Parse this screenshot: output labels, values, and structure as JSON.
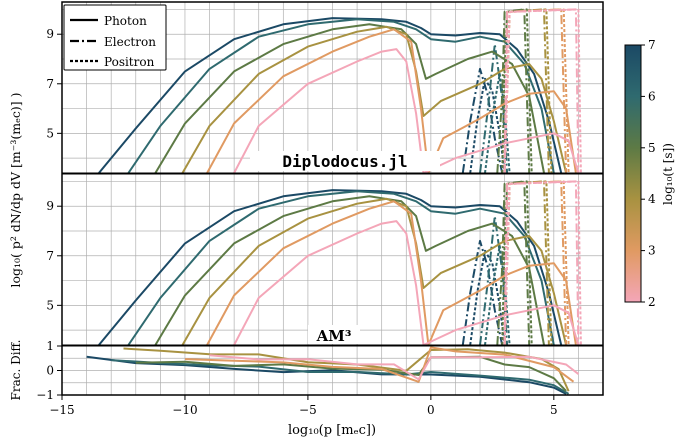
{
  "chart_data": {
    "type": "line",
    "xlabel": "log₁₀(p [mₑc])",
    "ylabel": "log₁₀( p² dN/dp dV  [m⁻³(mₑc)] )",
    "ylabel_ratio": "Frac. Diff.",
    "xlim": [
      -15,
      7
    ],
    "xticks": [
      "−15",
      "−10",
      "−5",
      "0",
      "5"
    ],
    "panels": [
      {
        "id": "top",
        "annotation": "Diplodocus.jl",
        "ylim": [
          3.4,
          10.3
        ],
        "yticks": [
          "5",
          "7",
          "9"
        ]
      },
      {
        "id": "middle",
        "annotation": "AM³",
        "ylim": [
          3.4,
          10.3
        ],
        "yticks": [
          "5",
          "7",
          "9"
        ]
      },
      {
        "id": "bottom",
        "annotation": "",
        "ylim": [
          -1,
          1
        ],
        "yticks": [
          "−1",
          "0",
          "1"
        ]
      }
    ],
    "legend": {
      "placement": "top-left",
      "entries": [
        "Photon",
        "Electron",
        "Positron"
      ]
    },
    "colorbar": {
      "label": "log₁₀(t [s])",
      "range": [
        2,
        7
      ],
      "ticks": [
        "2",
        "3",
        "4",
        "5",
        "6",
        "7"
      ]
    },
    "grid": true,
    "series": [
      {
        "logt": 7.0,
        "color": "#1b4965",
        "photon": [
          [
            -13.5,
            3.4
          ],
          [
            -12,
            5.2
          ],
          [
            -10,
            7.5
          ],
          [
            -8,
            8.8
          ],
          [
            -6,
            9.4
          ],
          [
            -4,
            9.65
          ],
          [
            -2,
            9.6
          ],
          [
            -1,
            9.5
          ],
          [
            -0.4,
            9.25
          ],
          [
            0,
            9.0
          ],
          [
            1,
            8.95
          ],
          [
            2,
            9.05
          ],
          [
            2.8,
            9.0
          ],
          [
            3.5,
            8.4
          ],
          [
            4.2,
            7.4
          ],
          [
            4.8,
            5.5
          ],
          [
            5.3,
            3.4
          ]
        ],
        "electron": [
          [
            1.3,
            3.4
          ],
          [
            1.6,
            5.5
          ],
          [
            2.0,
            7.6
          ],
          [
            2.3,
            6.6
          ],
          [
            2.6,
            4.8
          ],
          [
            2.9,
            3.4
          ]
        ],
        "positron": [
          [
            1.6,
            3.4
          ],
          [
            1.9,
            5.6
          ],
          [
            2.2,
            7.2
          ],
          [
            2.5,
            6.7
          ],
          [
            2.8,
            5.0
          ],
          [
            3.0,
            3.4
          ]
        ],
        "diff": [
          [
            -14,
            0.5
          ],
          [
            -12,
            0.35
          ],
          [
            -10,
            0.2
          ],
          [
            -8,
            0.05
          ],
          [
            -6,
            -0.02
          ],
          [
            -4,
            -0.05
          ],
          [
            -2,
            -0.1
          ],
          [
            0,
            -0.2
          ],
          [
            2,
            -0.25
          ],
          [
            4,
            -0.45
          ],
          [
            5,
            -0.7
          ],
          [
            5.5,
            -1.0
          ]
        ]
      },
      {
        "logt": 6.0,
        "color": "#2f6a6f",
        "photon": [
          [
            -12.3,
            3.4
          ],
          [
            -11,
            5.3
          ],
          [
            -9,
            7.6
          ],
          [
            -7,
            8.9
          ],
          [
            -5,
            9.4
          ],
          [
            -3,
            9.6
          ],
          [
            -1.5,
            9.5
          ],
          [
            -0.6,
            9.2
          ],
          [
            0,
            8.8
          ],
          [
            1,
            8.7
          ],
          [
            2,
            8.9
          ],
          [
            3,
            8.7
          ],
          [
            3.8,
            7.8
          ],
          [
            4.5,
            6.0
          ],
          [
            5.0,
            3.4
          ]
        ],
        "electron": [
          [
            2.0,
            3.4
          ],
          [
            2.3,
            5.8
          ],
          [
            2.6,
            8.6
          ],
          [
            2.9,
            6.4
          ],
          [
            3.1,
            3.4
          ]
        ],
        "positron": [
          [
            2.2,
            3.4
          ],
          [
            2.5,
            5.7
          ],
          [
            2.8,
            7.4
          ],
          [
            3.0,
            6.0
          ],
          [
            3.2,
            3.4
          ]
        ],
        "diff": [
          [
            -13,
            0.4
          ],
          [
            -11,
            0.3
          ],
          [
            -9,
            0.25
          ],
          [
            -7,
            0.1
          ],
          [
            -5,
            0.0
          ],
          [
            -3,
            -0.1
          ],
          [
            -1,
            -0.15
          ],
          [
            0,
            -0.1
          ],
          [
            2,
            -0.2
          ],
          [
            4,
            -0.35
          ],
          [
            5,
            -0.6
          ],
          [
            5.6,
            -1.0
          ]
        ]
      },
      {
        "logt": 5.0,
        "color": "#5d7a45",
        "photon": [
          [
            -11.2,
            3.4
          ],
          [
            -10,
            5.4
          ],
          [
            -8,
            7.5
          ],
          [
            -6,
            8.6
          ],
          [
            -4,
            9.2
          ],
          [
            -2.5,
            9.4
          ],
          [
            -1.2,
            9.2
          ],
          [
            -0.6,
            8.6
          ],
          [
            -0.2,
            7.2
          ],
          [
            0.2,
            7.4
          ],
          [
            1.5,
            8.0
          ],
          [
            2.5,
            8.3
          ],
          [
            3.3,
            7.8
          ],
          [
            4.0,
            6.5
          ],
          [
            4.6,
            3.4
          ]
        ],
        "electron": [
          [
            2.7,
            3.4
          ],
          [
            2.9,
            6.5
          ],
          [
            3.0,
            9.9
          ],
          [
            3.8,
            10.0
          ],
          [
            4.0,
            3.4
          ]
        ],
        "positron": [
          [
            2.9,
            3.4
          ],
          [
            3.0,
            7.5
          ],
          [
            3.1,
            9.9
          ],
          [
            3.9,
            10.0
          ],
          [
            4.1,
            3.4
          ]
        ],
        "diff": [
          [
            -12,
            0.35
          ],
          [
            -10,
            0.3
          ],
          [
            -8,
            0.25
          ],
          [
            -6,
            0.2
          ],
          [
            -4,
            0.1
          ],
          [
            -2,
            0.05
          ],
          [
            -0.5,
            -0.2
          ],
          [
            0,
            0.5
          ],
          [
            1,
            0.6
          ],
          [
            2,
            0.5
          ],
          [
            3,
            0.3
          ],
          [
            4,
            0.1
          ],
          [
            5,
            -0.3
          ],
          [
            5.5,
            -0.8
          ]
        ]
      },
      {
        "logt": 4.0,
        "color": "#a89241",
        "photon": [
          [
            -10.1,
            3.4
          ],
          [
            -9,
            5.3
          ],
          [
            -7,
            7.4
          ],
          [
            -5,
            8.5
          ],
          [
            -3,
            9.1
          ],
          [
            -1.8,
            9.3
          ],
          [
            -1.0,
            9.0
          ],
          [
            -0.6,
            7.5
          ],
          [
            -0.3,
            5.7
          ],
          [
            0.4,
            6.3
          ],
          [
            2,
            7.0
          ],
          [
            3,
            7.6
          ],
          [
            4,
            7.8
          ],
          [
            4.5,
            7.2
          ],
          [
            5.0,
            5.5
          ],
          [
            5.5,
            3.4
          ]
        ],
        "electron": [
          [
            3.0,
            3.4
          ],
          [
            3.1,
            9.9
          ],
          [
            4.6,
            10.0
          ],
          [
            4.8,
            3.4
          ]
        ],
        "positron": [
          [
            3.0,
            3.4
          ],
          [
            3.2,
            9.9
          ],
          [
            4.7,
            10.0
          ],
          [
            4.9,
            3.4
          ]
        ],
        "diff": [
          [
            -12.5,
            0.9
          ],
          [
            -11,
            0.8
          ],
          [
            -9,
            0.7
          ],
          [
            -7,
            0.6
          ],
          [
            -5,
            0.4
          ],
          [
            -3,
            0.2
          ],
          [
            -1,
            0.0
          ],
          [
            0,
            0.8
          ],
          [
            1.5,
            0.9
          ],
          [
            3,
            0.7
          ],
          [
            4.5,
            0.5
          ],
          [
            5.2,
            0.0
          ],
          [
            5.6,
            -0.8
          ]
        ]
      },
      {
        "logt": 3.0,
        "color": "#e09a62",
        "photon": [
          [
            -9.1,
            3.4
          ],
          [
            -8,
            5.4
          ],
          [
            -6,
            7.3
          ],
          [
            -4,
            8.3
          ],
          [
            -2.5,
            8.9
          ],
          [
            -1.5,
            9.2
          ],
          [
            -0.8,
            8.7
          ],
          [
            -0.4,
            6.0
          ],
          [
            -0.1,
            3.4
          ],
          [
            0.5,
            4.8
          ],
          [
            2,
            5.6
          ],
          [
            3,
            6.2
          ],
          [
            4,
            6.6
          ],
          [
            5,
            6.7
          ],
          [
            5.5,
            6.0
          ],
          [
            5.9,
            3.4
          ]
        ],
        "electron": [
          [
            3.0,
            3.4
          ],
          [
            3.1,
            9.9
          ],
          [
            5.3,
            10.0
          ],
          [
            5.5,
            3.4
          ]
        ],
        "positron": [
          [
            3.0,
            3.4
          ],
          [
            3.2,
            9.9
          ],
          [
            5.4,
            10.0
          ],
          [
            5.6,
            3.4
          ]
        ],
        "diff": [
          [
            -10,
            0.5
          ],
          [
            -8,
            0.4
          ],
          [
            -6,
            0.3
          ],
          [
            -4,
            0.2
          ],
          [
            -2,
            0.0
          ],
          [
            -0.5,
            -0.4
          ],
          [
            0,
            0.9
          ],
          [
            1,
            0.8
          ],
          [
            3,
            0.6
          ],
          [
            5,
            0.2
          ],
          [
            5.8,
            -0.5
          ]
        ]
      },
      {
        "logt": 2.0,
        "color": "#f4a6b8",
        "photon": [
          [
            -8.0,
            3.4
          ],
          [
            -7,
            5.3
          ],
          [
            -5,
            7.0
          ],
          [
            -3,
            7.9
          ],
          [
            -2,
            8.3
          ],
          [
            -1.4,
            8.4
          ],
          [
            -1.0,
            7.9
          ],
          [
            -0.6,
            5.8
          ],
          [
            -0.3,
            3.4
          ],
          [
            1,
            4.0
          ],
          [
            3,
            4.6
          ],
          [
            5,
            5.0
          ],
          [
            5.6,
            4.7
          ],
          [
            6.0,
            3.4
          ]
        ],
        "electron": [
          [
            3.0,
            3.4
          ],
          [
            3.1,
            9.9
          ],
          [
            5.9,
            10.0
          ],
          [
            6.0,
            3.4
          ]
        ],
        "positron": [
          [
            3.0,
            3.4
          ],
          [
            3.2,
            9.9
          ],
          [
            6.0,
            10.0
          ],
          [
            6.1,
            3.4
          ]
        ],
        "diff": [
          [
            -9,
            0.6
          ],
          [
            -7,
            0.5
          ],
          [
            -5,
            0.4
          ],
          [
            -3,
            0.3
          ],
          [
            -1.5,
            0.2
          ],
          [
            -0.5,
            -0.3
          ],
          [
            0,
            0.5
          ],
          [
            2,
            0.6
          ],
          [
            4,
            0.5
          ],
          [
            5.5,
            0.3
          ],
          [
            6,
            -0.2
          ]
        ]
      }
    ]
  }
}
